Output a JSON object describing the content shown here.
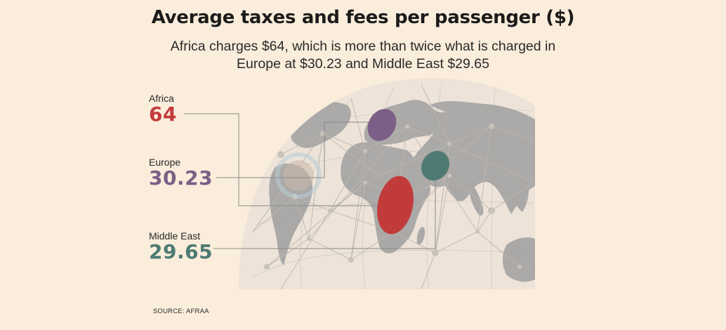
{
  "header": {
    "title": "Average taxes and fees per passenger ($)",
    "subtitle_line1": "Africa charges $64, which is more than twice what is charged in",
    "subtitle_line2": "Europe at $30.23 and Middle East $29.65"
  },
  "source": "SOURCE: AFRAA",
  "colors": {
    "background": "#faeddb",
    "africa": "#c23b3b",
    "europe": "#7b5f86",
    "middle_east": "#4e7a73",
    "land": "#a3a3a3",
    "network": "#c2bcb4"
  },
  "chart_data": {
    "type": "bar",
    "title": "Average taxes and fees per passenger ($)",
    "subtitle": "Africa charges $64, which is more than twice what is charged in Europe at $30.23 and Middle East $29.65",
    "categories": [
      "Africa",
      "Europe",
      "Middle East"
    ],
    "values": [
      64,
      30.23,
      29.65
    ],
    "value_labels": [
      "64",
      "30.23",
      "29.65"
    ],
    "series_colors": [
      "#c23b3b",
      "#7b5f86",
      "#4e7a73"
    ],
    "xlabel": "",
    "ylabel": "",
    "source": "SOURCE: AFRAA"
  }
}
